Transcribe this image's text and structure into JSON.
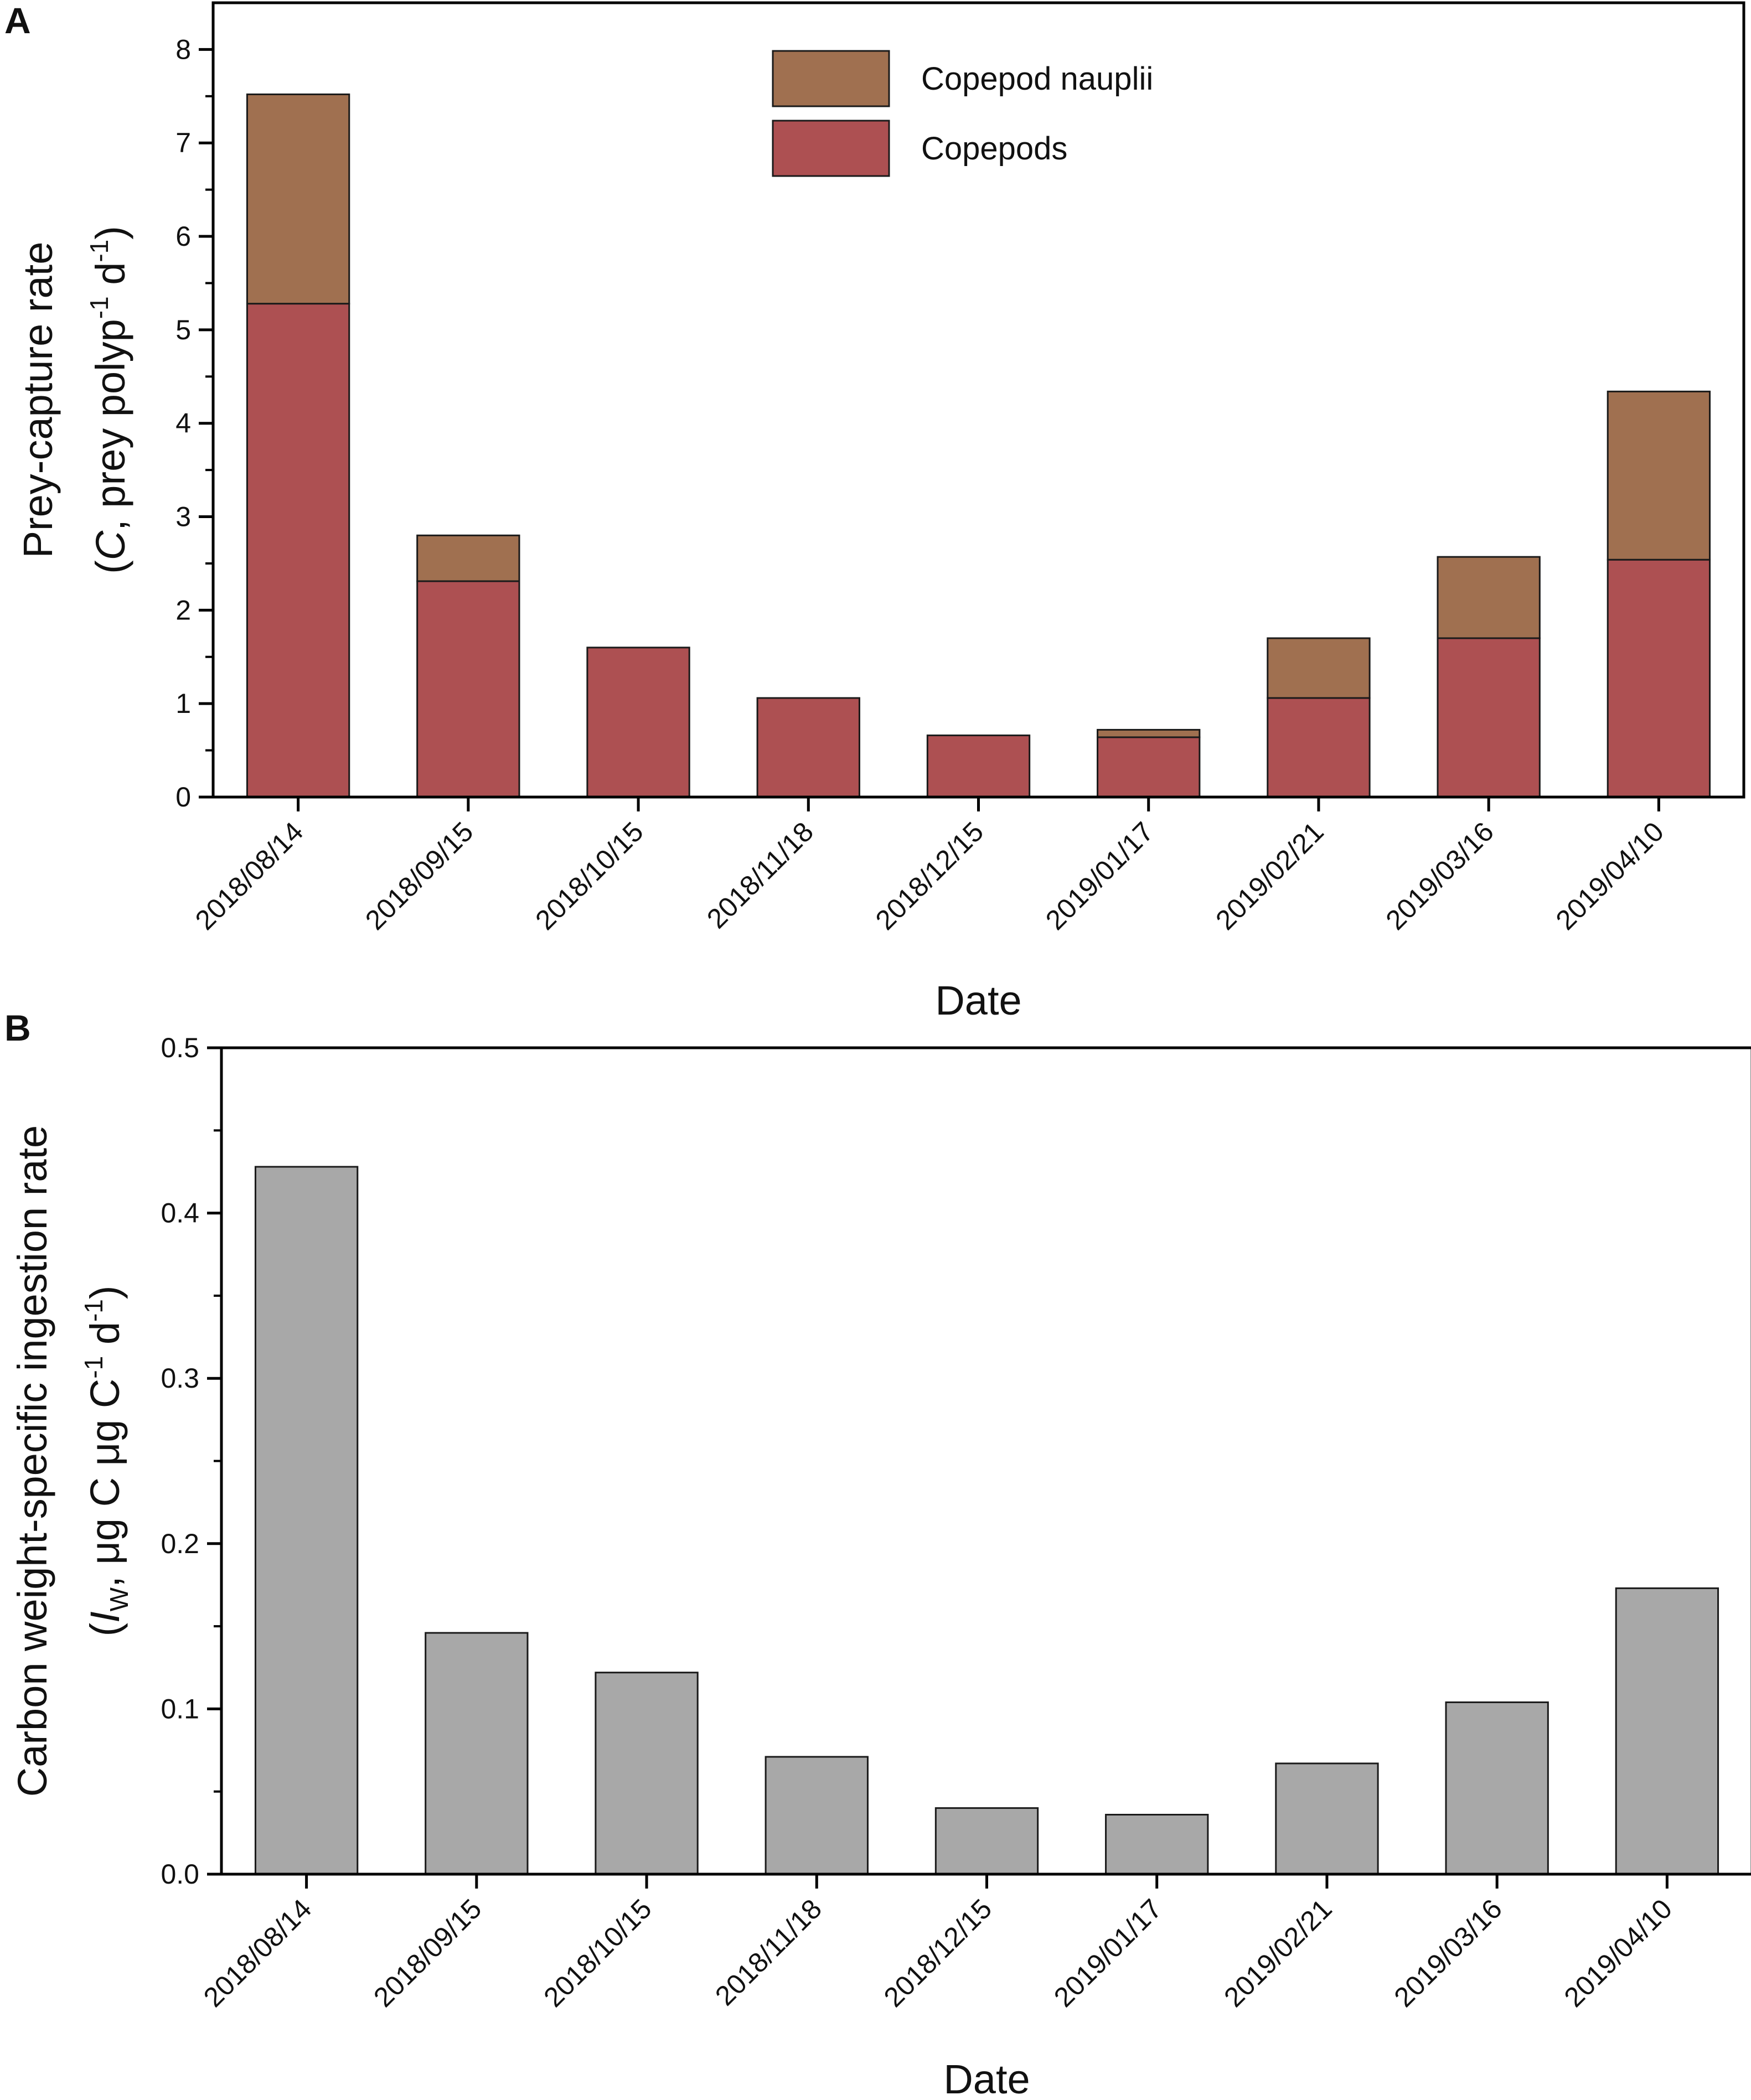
{
  "chart_data": [
    {
      "panel": "A",
      "type": "bar",
      "stacked": true,
      "categories": [
        "2018/08/14",
        "2018/09/15",
        "2018/10/15",
        "2018/11/18",
        "2018/12/15",
        "2019/01/17",
        "2019/02/21",
        "2019/03/16",
        "2019/04/10"
      ],
      "series": [
        {
          "name": "Copepods",
          "color": "#ad5052",
          "values": [
            5.28,
            2.31,
            1.6,
            1.06,
            0.66,
            0.64,
            1.06,
            1.7,
            2.54
          ]
        },
        {
          "name": "Copepod nauplii",
          "color": "#a07050",
          "values": [
            2.24,
            0.49,
            0.0,
            0.0,
            0.0,
            0.08,
            0.64,
            0.87,
            1.8
          ]
        }
      ],
      "legend_order": [
        "Copepod nauplii",
        "Copepods"
      ],
      "xlabel": "Date",
      "ylabel_line1": "Prey-capture rate",
      "ylabel_line2": {
        "open": "(",
        "italic": "C",
        "mid": ", prey polyp",
        "sup1": "-1",
        "mid2": " d",
        "sup2": "-1",
        "close": ")"
      },
      "ylim": [
        0,
        8.5
      ],
      "yticks": [
        0,
        1,
        2,
        3,
        4,
        5,
        6,
        7,
        8
      ],
      "ytick_labels": [
        "0",
        "1",
        "2",
        "3",
        "4",
        "5",
        "6",
        "7",
        "8"
      ],
      "legend_position": "top-center"
    },
    {
      "panel": "B",
      "type": "bar",
      "categories": [
        "2018/08/14",
        "2018/09/15",
        "2018/10/15",
        "2018/11/18",
        "2018/12/15",
        "2019/01/17",
        "2019/02/21",
        "2019/03/16",
        "2019/04/10"
      ],
      "values": [
        0.428,
        0.146,
        0.122,
        0.071,
        0.04,
        0.036,
        0.067,
        0.104,
        0.173
      ],
      "color": "#a8a8a8",
      "xlabel": "Date",
      "ylabel_line1": "Carbon weight-specific ingestion rate",
      "ylabel_line2": {
        "open": "(",
        "italic": "I",
        "sub": "W",
        "mid": ", μg C μg C",
        "sup1": "-1",
        "mid2": " d",
        "sup2": "-1",
        "close": ")"
      },
      "ylim": [
        0,
        0.5
      ],
      "yticks": [
        0.0,
        0.1,
        0.2,
        0.3,
        0.4,
        0.5
      ],
      "ytick_labels": [
        "0.0",
        "0.1",
        "0.2",
        "0.3",
        "0.4",
        "0.5"
      ]
    }
  ]
}
